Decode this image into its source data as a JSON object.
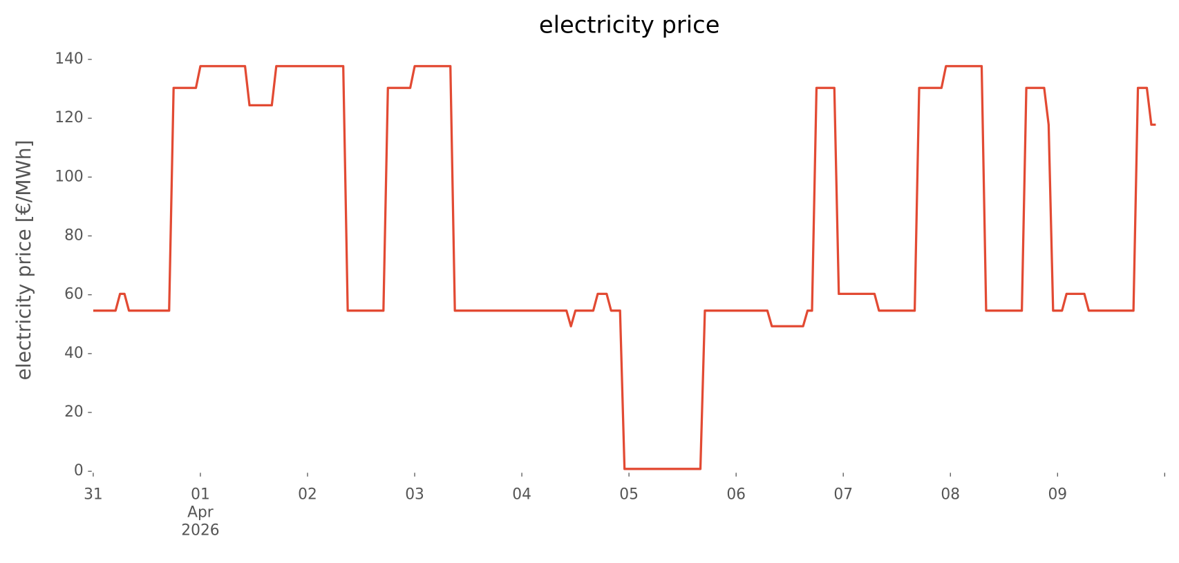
{
  "chart_data": {
    "type": "line",
    "title": "electricity price",
    "y_label": "electricity price [€/MWh]",
    "color": "#e24a33",
    "x": [
      "2026-03-31 00:00",
      "2026-03-31 05:00",
      "2026-03-31 06:00",
      "2026-03-31 07:00",
      "2026-03-31 08:00",
      "2026-03-31 17:00",
      "2026-03-31 18:00",
      "2026-03-31 23:00",
      "2026-04-01 00:00",
      "2026-04-01 10:00",
      "2026-04-01 11:00",
      "2026-04-01 16:00",
      "2026-04-01 17:00",
      "2026-04-02 08:00",
      "2026-04-02 09:00",
      "2026-04-02 17:00",
      "2026-04-02 18:00",
      "2026-04-02 23:00",
      "2026-04-03 00:00",
      "2026-04-03 08:00",
      "2026-04-03 09:00",
      "2026-04-04 10:00",
      "2026-04-04 11:00",
      "2026-04-04 12:00",
      "2026-04-04 16:00",
      "2026-04-04 17:00",
      "2026-04-04 19:00",
      "2026-04-04 20:00",
      "2026-04-04 22:00",
      "2026-04-04 23:00",
      "2026-04-05 16:00",
      "2026-04-05 17:00",
      "2026-04-06 07:00",
      "2026-04-06 08:00",
      "2026-04-06 15:00",
      "2026-04-06 16:00",
      "2026-04-06 17:00",
      "2026-04-06 18:00",
      "2026-04-06 22:00",
      "2026-04-06 23:00",
      "2026-04-07 07:00",
      "2026-04-07 08:00",
      "2026-04-07 16:00",
      "2026-04-07 17:00",
      "2026-04-07 22:00",
      "2026-04-07 23:00",
      "2026-04-08 07:00",
      "2026-04-08 08:00",
      "2026-04-08 16:00",
      "2026-04-08 17:00",
      "2026-04-08 21:00",
      "2026-04-08 22:00",
      "2026-04-08 23:00",
      "2026-04-09 01:00",
      "2026-04-09 02:00",
      "2026-04-09 06:00",
      "2026-04-09 07:00",
      "2026-04-09 17:00",
      "2026-04-09 18:00",
      "2026-04-09 20:00",
      "2026-04-09 21:00",
      "2026-04-09 22:00"
    ],
    "values": [
      54.6,
      54.6,
      60.3,
      60.3,
      54.6,
      54.6,
      130.3,
      130.3,
      137.7,
      137.7,
      124.4,
      124.4,
      137.7,
      137.7,
      54.6,
      54.6,
      130.3,
      130.3,
      137.7,
      137.7,
      54.6,
      54.6,
      49.3,
      54.6,
      54.6,
      60.3,
      60.3,
      54.6,
      54.6,
      0.8,
      0.8,
      54.6,
      54.6,
      49.3,
      49.3,
      54.6,
      54.6,
      130.3,
      130.3,
      60.3,
      60.3,
      54.6,
      54.6,
      130.3,
      130.3,
      137.7,
      137.7,
      54.6,
      54.6,
      130.3,
      130.3,
      117.8,
      54.6,
      54.6,
      60.3,
      60.3,
      54.6,
      54.6,
      130.3,
      130.3,
      117.8,
      117.8
    ],
    "xlim": [
      "2026-03-31 00:00",
      "2026-04-10 00:00"
    ],
    "xticks": [
      {
        "value": "2026-03-31 00:00",
        "label": "31"
      },
      {
        "value": "2026-04-01 00:00",
        "label": "01\nApr\n2026"
      },
      {
        "value": "2026-04-02 00:00",
        "label": "02"
      },
      {
        "value": "2026-04-03 00:00",
        "label": "03"
      },
      {
        "value": "2026-04-04 00:00",
        "label": "04"
      },
      {
        "value": "2026-04-05 00:00",
        "label": "05"
      },
      {
        "value": "2026-04-06 00:00",
        "label": "06"
      },
      {
        "value": "2026-04-07 00:00",
        "label": "07"
      },
      {
        "value": "2026-04-08 00:00",
        "label": "08"
      },
      {
        "value": "2026-04-09 00:00",
        "label": "09"
      }
    ],
    "ylim": [
      0,
      140
    ],
    "yticks": [
      0,
      20,
      40,
      60,
      80,
      100,
      120,
      140
    ]
  }
}
